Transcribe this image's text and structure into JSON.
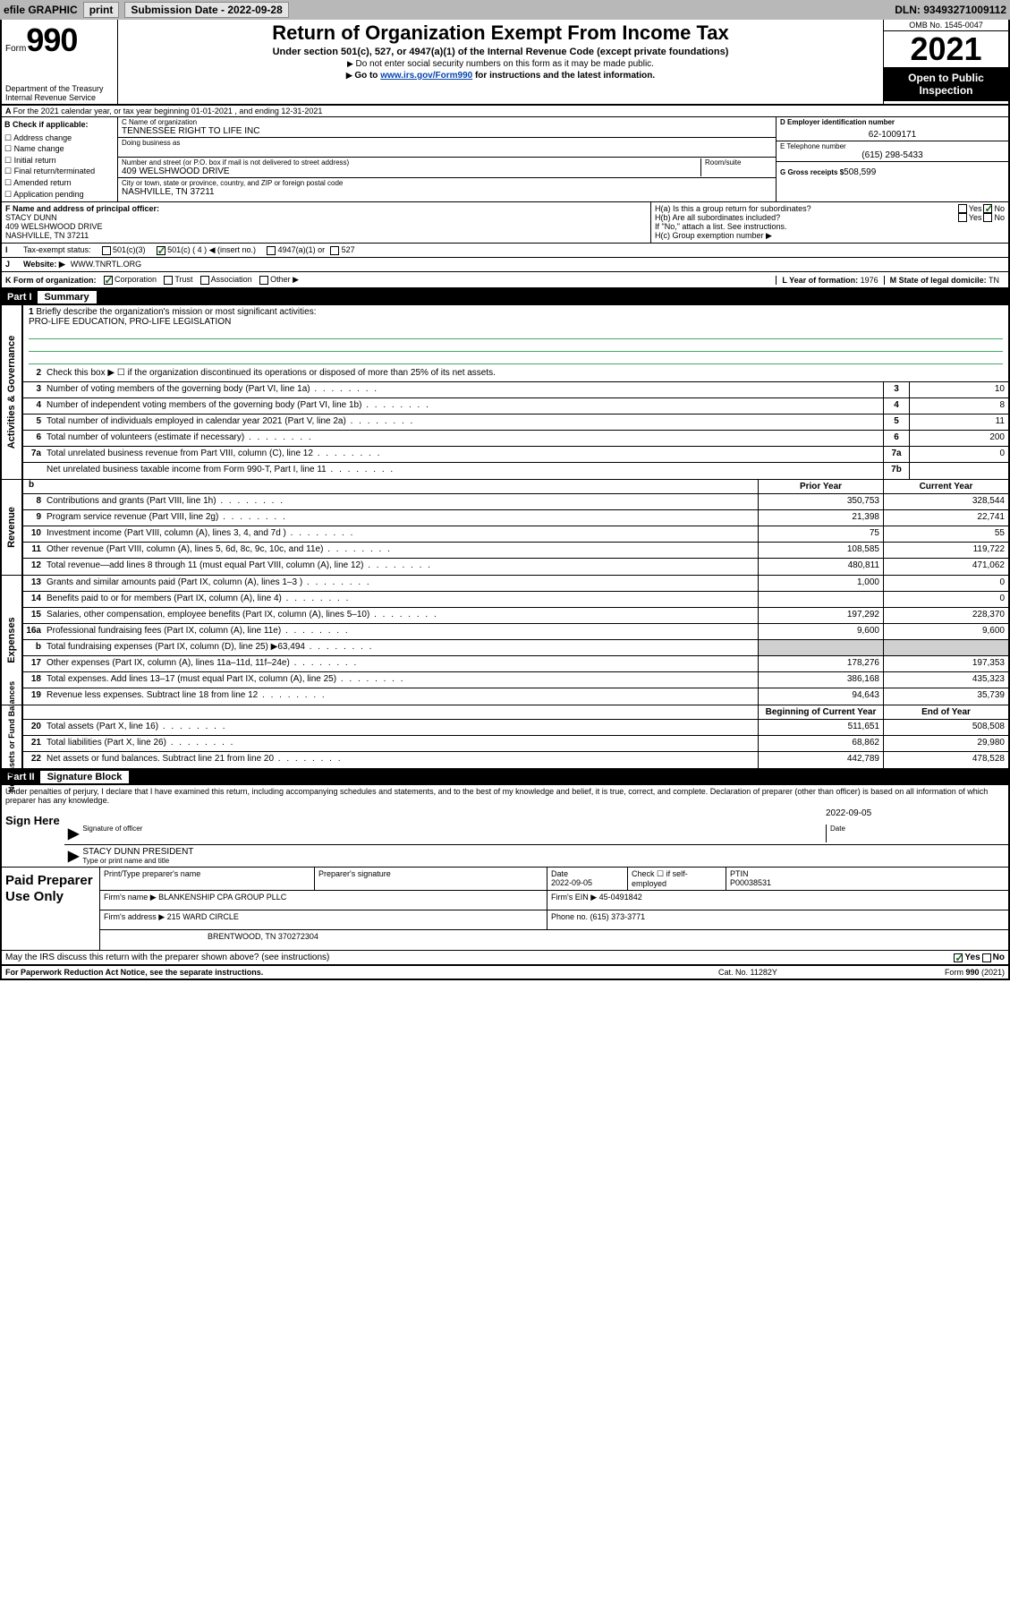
{
  "topbar": {
    "efile": "efile GRAPHIC",
    "print": "print",
    "subdate_lbl": "Submission Date - 2022-09-28",
    "dln": "DLN: 93493271009112"
  },
  "header": {
    "form_word": "Form",
    "form_num": "990",
    "dept": "Department of the Treasury",
    "irs": "Internal Revenue Service",
    "title": "Return of Organization Exempt From Income Tax",
    "sub1": "Under section 501(c), 527, or 4947(a)(1) of the Internal Revenue Code (except private foundations)",
    "sub2": "Do not enter social security numbers on this form as it may be made public.",
    "sub3a": "Go to ",
    "sub3link": "www.irs.gov/Form990",
    "sub3b": " for instructions and the latest information.",
    "omb": "OMB No. 1545-0047",
    "year": "2021",
    "open": "Open to Public Inspection"
  },
  "line_a": "For the 2021 calendar year, or tax year beginning 01-01-2021  , and ending 12-31-2021",
  "col_b": {
    "hd": "B Check if applicable:",
    "items": [
      "Address change",
      "Name change",
      "Initial return",
      "Final return/terminated",
      "Amended return",
      "Application pending"
    ]
  },
  "block_c": {
    "c_lbl": "C Name of organization",
    "c_val": "TENNESSEE RIGHT TO LIFE INC",
    "dba_lbl": "Doing business as",
    "addr_lbl": "Number and street (or P.O. box if mail is not delivered to street address)",
    "room_lbl": "Room/suite",
    "addr_val": "409 WELSHWOOD DRIVE",
    "city_lbl": "City or town, state or province, country, and ZIP or foreign postal code",
    "city_val": "NASHVILLE, TN  37211"
  },
  "block_d": {
    "d_lbl": "D Employer identification number",
    "d_val": "62-1009171",
    "e_lbl": "E Telephone number",
    "e_val": "(615) 298-5433",
    "g_lbl": "G Gross receipts $",
    "g_val": "508,599"
  },
  "block_f": {
    "f_lbl": "F Name and address of principal officer:",
    "f_name": "STACY DUNN",
    "f_addr1": "409 WELSHWOOD DRIVE",
    "f_addr2": "NASHVILLE, TN  37211"
  },
  "block_h": {
    "ha": "H(a)  Is this a group return for subordinates?",
    "hb": "H(b)  Are all subordinates included?",
    "note": "If \"No,\" attach a list. See instructions.",
    "hc": "H(c)  Group exemption number ▶"
  },
  "row_i": {
    "lbl": "Tax-exempt status:",
    "o1": "501(c)(3)",
    "o2": "501(c) ( 4 ) ◀ (insert no.)",
    "o3": "4947(a)(1) or",
    "o4": "527"
  },
  "row_j": {
    "lbl": "Website: ▶",
    "val": "WWW.TNRTL.ORG"
  },
  "row_k": {
    "lbl": "K Form of organization:",
    "o1": "Corporation",
    "o2": "Trust",
    "o3": "Association",
    "o4": "Other ▶",
    "l_lbl": "L Year of formation:",
    "l_val": "1976",
    "m_lbl": "M State of legal domicile:",
    "m_val": "TN"
  },
  "part1": {
    "num": "Part I",
    "title": "Summary"
  },
  "mission": {
    "n": "1",
    "lbl": "Briefly describe the organization's mission or most significant activities:",
    "txt": "PRO-LIFE EDUCATION, PRO-LIFE LEGISLATION"
  },
  "gov_lines": [
    {
      "n": "2",
      "d": "Check this box ▶ ☐  if the organization discontinued its operations or disposed of more than 25% of its net assets."
    },
    {
      "n": "3",
      "d": "Number of voting members of the governing body (Part VI, line 1a)",
      "box": "3",
      "v": "10"
    },
    {
      "n": "4",
      "d": "Number of independent voting members of the governing body (Part VI, line 1b)",
      "box": "4",
      "v": "8"
    },
    {
      "n": "5",
      "d": "Total number of individuals employed in calendar year 2021 (Part V, line 2a)",
      "box": "5",
      "v": "11"
    },
    {
      "n": "6",
      "d": "Total number of volunteers (estimate if necessary)",
      "box": "6",
      "v": "200"
    },
    {
      "n": "7a",
      "d": "Total unrelated business revenue from Part VIII, column (C), line 12",
      "box": "7a",
      "v": "0"
    },
    {
      "n": "",
      "d": "Net unrelated business taxable income from Form 990-T, Part I, line 11",
      "box": "7b",
      "v": ""
    }
  ],
  "rev_hdr": {
    "b": "b",
    "py": "Prior Year",
    "cy": "Current Year"
  },
  "rev_lines": [
    {
      "n": "8",
      "d": "Contributions and grants (Part VIII, line 1h)",
      "py": "350,753",
      "cy": "328,544"
    },
    {
      "n": "9",
      "d": "Program service revenue (Part VIII, line 2g)",
      "py": "21,398",
      "cy": "22,741"
    },
    {
      "n": "10",
      "d": "Investment income (Part VIII, column (A), lines 3, 4, and 7d )",
      "py": "75",
      "cy": "55"
    },
    {
      "n": "11",
      "d": "Other revenue (Part VIII, column (A), lines 5, 6d, 8c, 9c, 10c, and 11e)",
      "py": "108,585",
      "cy": "119,722"
    },
    {
      "n": "12",
      "d": "Total revenue—add lines 8 through 11 (must equal Part VIII, column (A), line 12)",
      "py": "480,811",
      "cy": "471,062"
    }
  ],
  "exp_lines": [
    {
      "n": "13",
      "d": "Grants and similar amounts paid (Part IX, column (A), lines 1–3 )",
      "py": "1,000",
      "cy": "0"
    },
    {
      "n": "14",
      "d": "Benefits paid to or for members (Part IX, column (A), line 4)",
      "py": "",
      "cy": "0"
    },
    {
      "n": "15",
      "d": "Salaries, other compensation, employee benefits (Part IX, column (A), lines 5–10)",
      "py": "197,292",
      "cy": "228,370"
    },
    {
      "n": "16a",
      "d": "Professional fundraising fees (Part IX, column (A), line 11e)",
      "py": "9,600",
      "cy": "9,600"
    },
    {
      "n": "b",
      "d": "Total fundraising expenses (Part IX, column (D), line 25) ▶63,494",
      "py": "grey",
      "cy": "grey"
    },
    {
      "n": "17",
      "d": "Other expenses (Part IX, column (A), lines 11a–11d, 11f–24e)",
      "py": "178,276",
      "cy": "197,353"
    },
    {
      "n": "18",
      "d": "Total expenses. Add lines 13–17 (must equal Part IX, column (A), line 25)",
      "py": "386,168",
      "cy": "435,323"
    },
    {
      "n": "19",
      "d": "Revenue less expenses. Subtract line 18 from line 12",
      "py": "94,643",
      "cy": "35,739"
    }
  ],
  "na_hdr": {
    "py": "Beginning of Current Year",
    "cy": "End of Year"
  },
  "na_lines": [
    {
      "n": "20",
      "d": "Total assets (Part X, line 16)",
      "py": "511,651",
      "cy": "508,508"
    },
    {
      "n": "21",
      "d": "Total liabilities (Part X, line 26)",
      "py": "68,862",
      "cy": "29,980"
    },
    {
      "n": "22",
      "d": "Net assets or fund balances. Subtract line 21 from line 20",
      "py": "442,789",
      "cy": "478,528"
    }
  ],
  "part2": {
    "num": "Part II",
    "title": "Signature Block"
  },
  "sig_decl": "Under penalties of perjury, I declare that I have examined this return, including accompanying schedules and statements, and to the best of my knowledge and belief, it is true, correct, and complete. Declaration of preparer (other than officer) is based on all information of which preparer has any knowledge.",
  "sign_here": "Sign Here",
  "sig": {
    "date": "2022-09-05",
    "off_lbl": "Signature of officer",
    "date_lbl": "Date",
    "name": "STACY DUNN  PRESIDENT",
    "name_lbl": "Type or print name and title"
  },
  "paid": {
    "title": "Paid Preparer Use Only",
    "h1": "Print/Type preparer's name",
    "h2": "Preparer's signature",
    "h3": "Date",
    "h3v": "2022-09-05",
    "h4": "Check ☐ if self-employed",
    "h5": "PTIN",
    "h5v": "P00038531",
    "firm_lbl": "Firm's name    ▶",
    "firm": "BLANKENSHIP CPA GROUP PLLC",
    "ein_lbl": "Firm's EIN ▶",
    "ein": "45-0491842",
    "addr_lbl": "Firm's address ▶",
    "addr1": "215 WARD CIRCLE",
    "addr2": "BRENTWOOD, TN  370272304",
    "ph_lbl": "Phone no.",
    "ph": "(615) 373-3771"
  },
  "discuss": "May the IRS discuss this return with the preparer shown above? (see instructions)",
  "footer": {
    "l": "For Paperwork Reduction Act Notice, see the separate instructions.",
    "m": "Cat. No. 11282Y",
    "r": "Form 990 (2021)"
  },
  "yes": "Yes",
  "no": "No"
}
